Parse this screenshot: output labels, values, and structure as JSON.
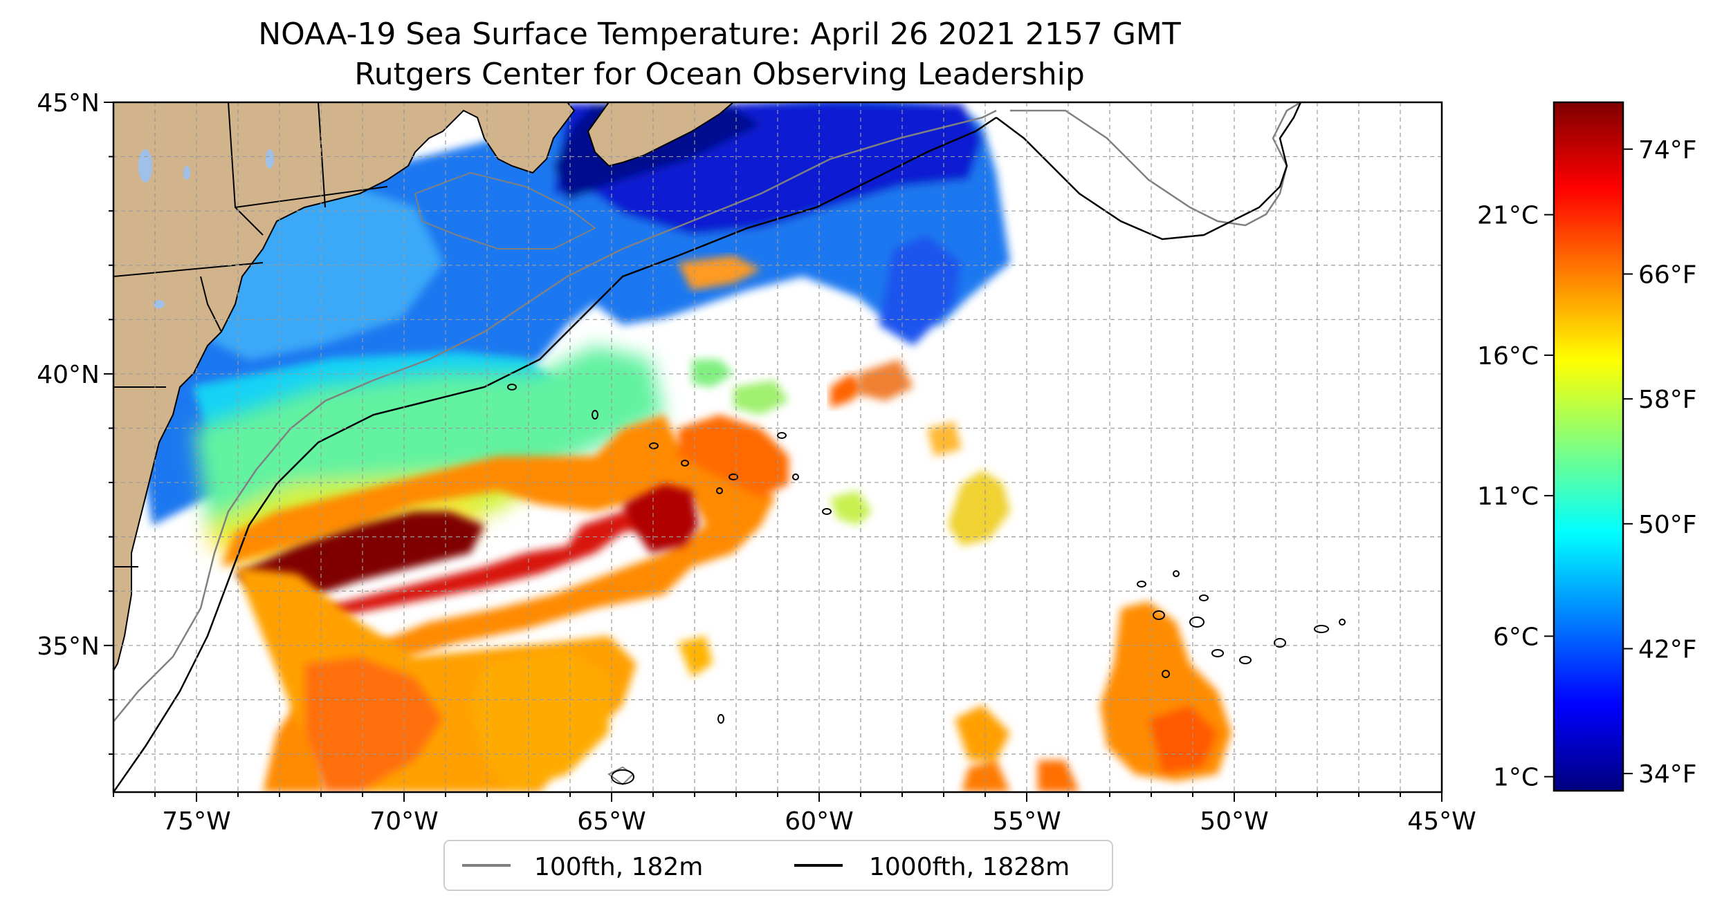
{
  "title": "NOAA-19 Sea Surface Temperature: April 26 2021 2157 GMT",
  "subtitle": "Rutgers Center for Ocean Observing Leadership",
  "map": {
    "lon_range": [
      -77,
      -45
    ],
    "lat_range": [
      32.3,
      45
    ],
    "lon_ticks": [
      {
        "value": -75,
        "label": "75°W"
      },
      {
        "value": -70,
        "label": "70°W"
      },
      {
        "value": -65,
        "label": "65°W"
      },
      {
        "value": -60,
        "label": "60°W"
      },
      {
        "value": -55,
        "label": "55°W"
      },
      {
        "value": -50,
        "label": "50°W"
      },
      {
        "value": -45,
        "label": "45°W"
      }
    ],
    "lat_ticks": [
      {
        "value": 45,
        "label": "45°N"
      },
      {
        "value": 40,
        "label": "40°N"
      },
      {
        "value": 35,
        "label": "35°N"
      }
    ],
    "gridlines": "dashed, 1° spacing",
    "land_color": "#d2b48c",
    "lake_color": "#9fc0e8"
  },
  "legend": {
    "placement": "below map",
    "items": [
      {
        "label": "100fth, 182m",
        "color": "#808080"
      },
      {
        "label": "1000fth, 1828m",
        "color": "#000000"
      }
    ]
  },
  "colorbar": {
    "colormap": "jet",
    "range_celsius": [
      0.5,
      25
    ],
    "celsius_ticks": [
      {
        "value": 1,
        "label": "1°C"
      },
      {
        "value": 6,
        "label": "6°C"
      },
      {
        "value": 11,
        "label": "11°C"
      },
      {
        "value": 16,
        "label": "16°C"
      },
      {
        "value": 21,
        "label": "21°C"
      }
    ],
    "fahrenheit_ticks": [
      {
        "value": 34,
        "label": "34°F"
      },
      {
        "value": 42,
        "label": "42°F"
      },
      {
        "value": 50,
        "label": "50°F"
      },
      {
        "value": 58,
        "label": "58°F"
      },
      {
        "value": 66,
        "label": "66°F"
      },
      {
        "value": 74,
        "label": "74°F"
      }
    ]
  }
}
